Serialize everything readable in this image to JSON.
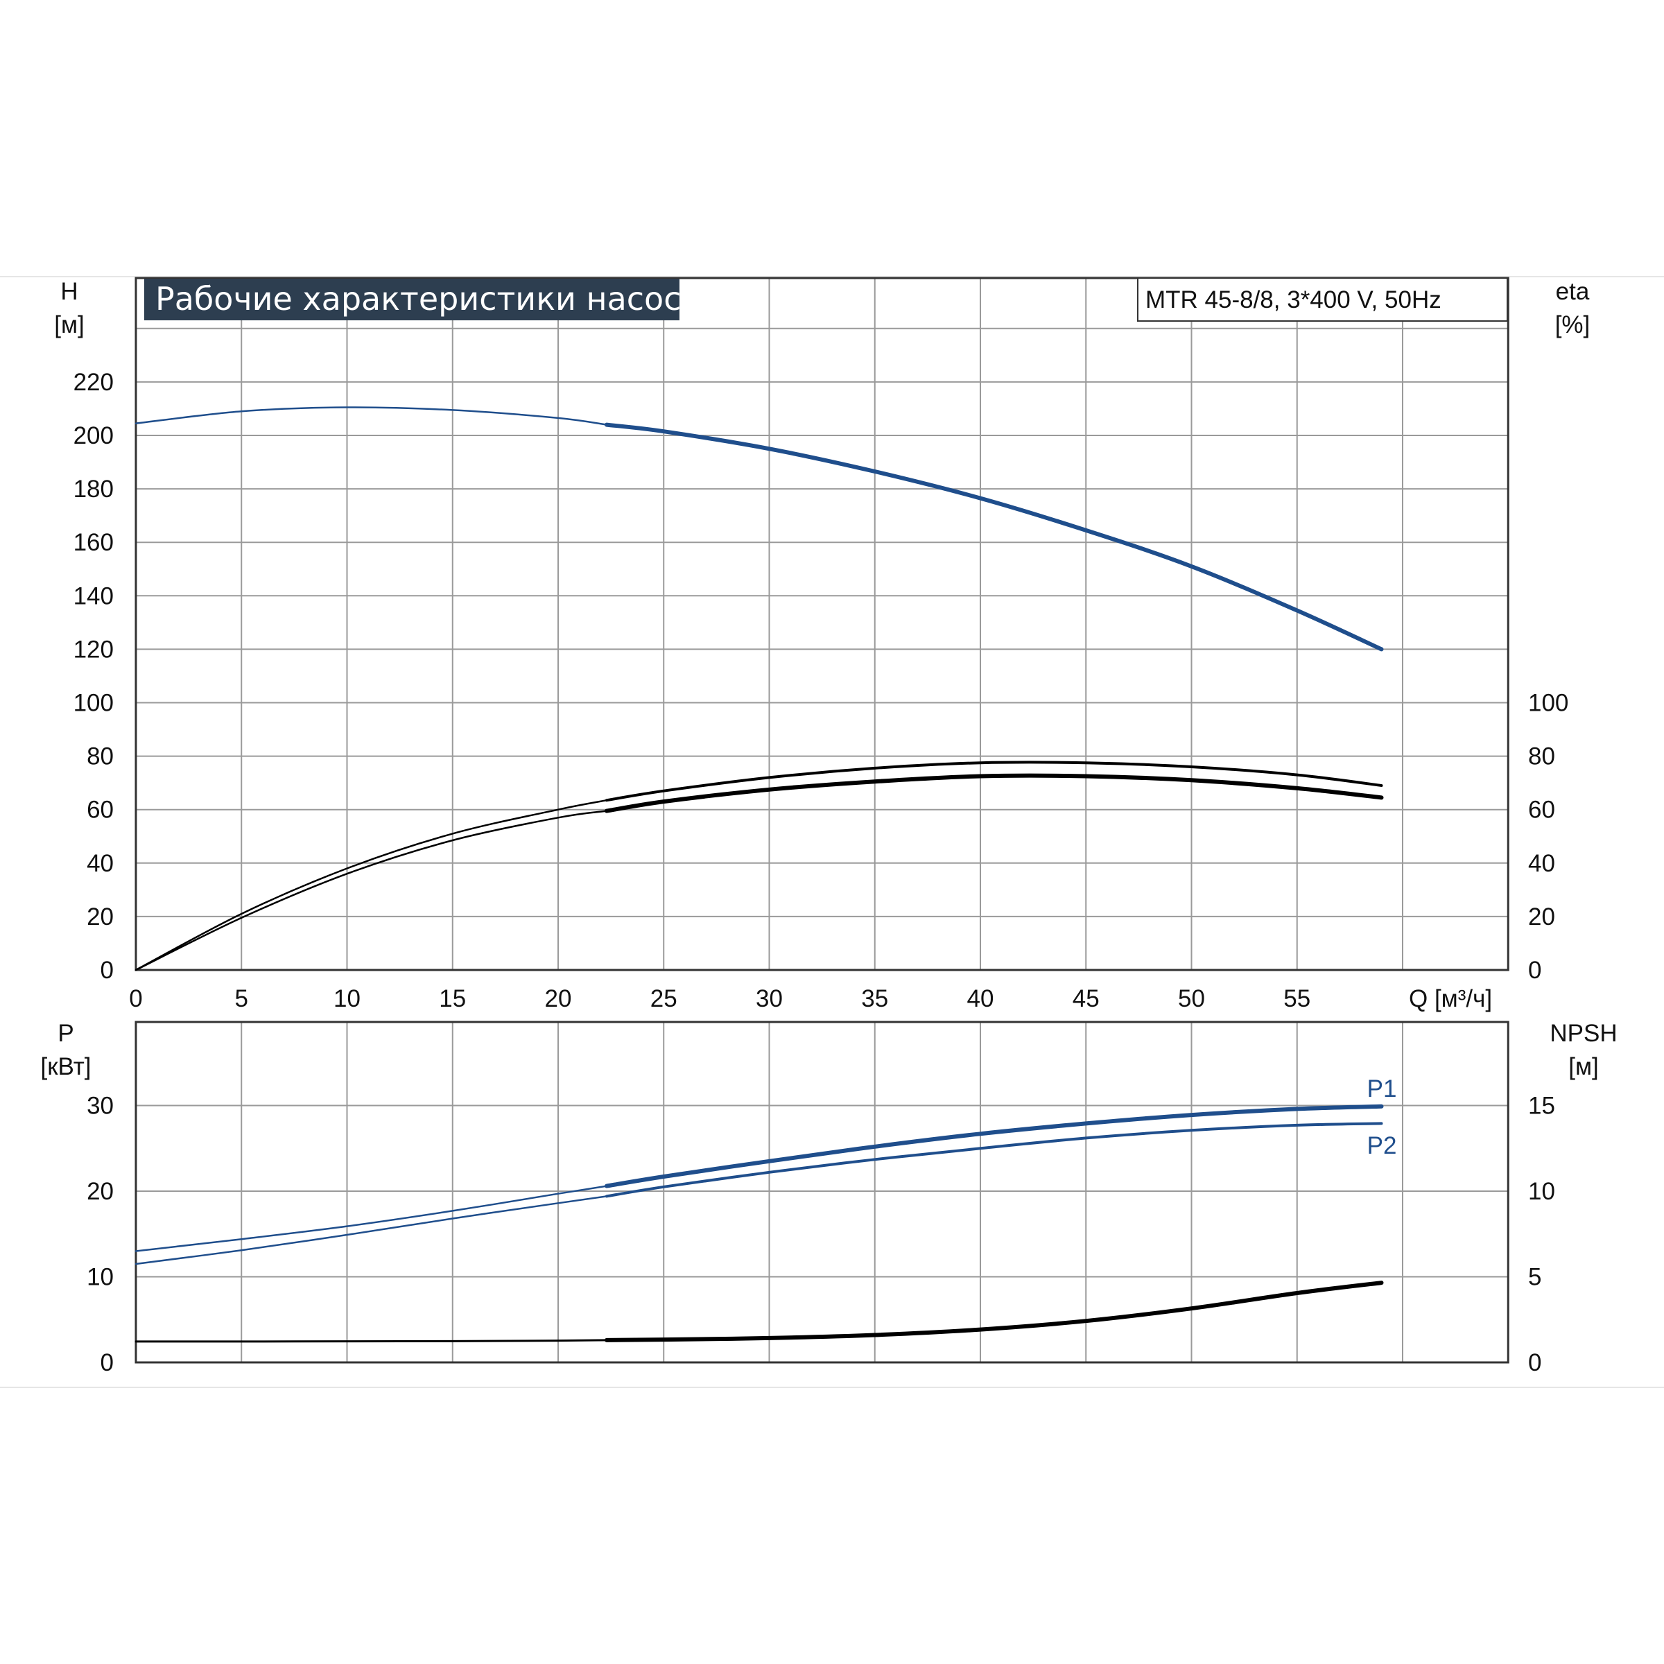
{
  "colors": {
    "background": "#ffffff",
    "grid": "#9a9a9a",
    "frame": "#333333",
    "title_bg": "#2d3e50",
    "title_fg": "#ffffff",
    "curve_blue": "#1f4e8c",
    "curve_black": "#000000"
  },
  "header": {
    "title": "Рабочие характеристики насоса",
    "model": "MTR 45-8/8, 3*400 V, 50Hz"
  },
  "chart_data": [
    {
      "type": "line",
      "panel": "upper",
      "xlabel": "Q [м³/ч]",
      "xlim": [
        0,
        65
      ],
      "xticks": [
        0,
        5,
        10,
        15,
        20,
        25,
        30,
        35,
        40,
        45,
        50,
        55
      ],
      "y_left": {
        "label_top": "H",
        "label_unit": "[м]",
        "lim": [
          0,
          240
        ],
        "ticks": [
          0,
          20,
          40,
          60,
          80,
          100,
          120,
          140,
          160,
          180,
          200,
          220
        ]
      },
      "y_right": {
        "label_top": "eta",
        "label_unit": "[%]",
        "lim": [
          0,
          240
        ],
        "ticks": [
          0,
          20,
          40,
          60,
          80,
          100
        ]
      },
      "grid": true,
      "series": [
        {
          "axis": "left",
          "color": "#1f4e8c",
          "x": [
            0,
            5,
            10,
            15,
            20,
            22.3,
            25,
            30,
            35,
            40,
            45,
            50,
            55,
            59
          ],
          "y": [
            204.5,
            209,
            210.5,
            209.5,
            206.5,
            204,
            201.5,
            195,
            186.5,
            176.5,
            164.5,
            151,
            134.5,
            120
          ]
        },
        {
          "axis": "right",
          "color": "#000000",
          "x": [
            0,
            5,
            10,
            15,
            20,
            22.3,
            25,
            30,
            35,
            40,
            45,
            50,
            55,
            59
          ],
          "y": [
            0,
            21,
            38,
            51,
            60,
            63.5,
            67,
            72,
            75.5,
            77.5,
            77.5,
            76,
            73,
            69
          ]
        },
        {
          "axis": "right",
          "color": "#000000",
          "x": [
            0,
            5,
            10,
            15,
            20,
            22.3,
            25,
            30,
            35,
            40,
            45,
            50,
            55,
            59
          ],
          "y": [
            0,
            19.5,
            36,
            48.5,
            57,
            59.5,
            63,
            67.5,
            70.5,
            72.5,
            72.5,
            71,
            68,
            64.5
          ]
        }
      ]
    },
    {
      "type": "line",
      "panel": "lower",
      "xlim": [
        0,
        65
      ],
      "y_left": {
        "label_top": "P",
        "label_unit": "[кВт]",
        "lim": [
          0,
          40
        ],
        "ticks": [
          0,
          10,
          20,
          30
        ]
      },
      "y_right": {
        "label_top": "NPSH",
        "label_unit": "[м]",
        "lim": [
          0,
          20
        ],
        "ticks": [
          0,
          5,
          10,
          15
        ]
      },
      "grid": true,
      "series": [
        {
          "name": "P1",
          "axis": "left",
          "color": "#1f4e8c",
          "x": [
            0,
            5,
            10,
            15,
            20,
            22.3,
            25,
            30,
            35,
            40,
            45,
            50,
            55,
            59
          ],
          "y": [
            13,
            14.4,
            15.9,
            17.7,
            19.7,
            20.6,
            21.7,
            23.5,
            25.2,
            26.7,
            27.9,
            28.9,
            29.6,
            29.9
          ]
        },
        {
          "name": "P2",
          "axis": "left",
          "color": "#1f4e8c",
          "x": [
            0,
            5,
            10,
            15,
            20,
            22.3,
            25,
            30,
            35,
            40,
            45,
            50,
            55,
            59
          ],
          "y": [
            11.5,
            13.1,
            14.9,
            16.8,
            18.6,
            19.4,
            20.5,
            22.2,
            23.7,
            25.0,
            26.2,
            27.1,
            27.7,
            27.9
          ]
        },
        {
          "axis": "right",
          "color": "#000000",
          "x": [
            0,
            5,
            10,
            15,
            20,
            22.3,
            25,
            30,
            35,
            40,
            45,
            50,
            55,
            59
          ],
          "y": [
            1.22,
            1.22,
            1.23,
            1.24,
            1.27,
            1.3,
            1.33,
            1.42,
            1.6,
            1.92,
            2.42,
            3.15,
            4.05,
            4.65
          ]
        }
      ]
    }
  ]
}
